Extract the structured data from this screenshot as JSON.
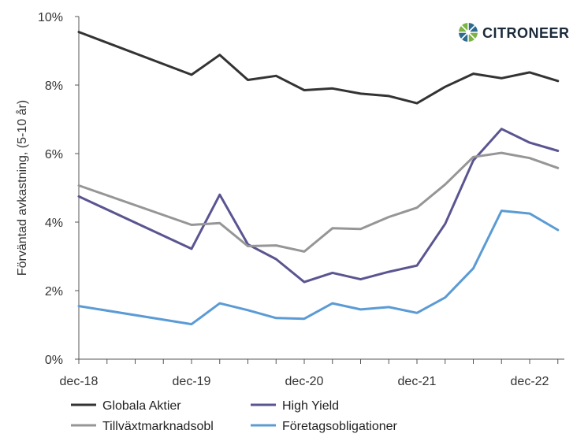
{
  "brand": {
    "name": "CITRONEER",
    "icon": "citroneer-logo-icon"
  },
  "chart_data": {
    "type": "line",
    "ylabel": "Förväntad avkastning, (5-10 år)",
    "xlabel": "",
    "ylim": [
      0,
      10
    ],
    "y_ticks": [
      0,
      2,
      4,
      6,
      8,
      10
    ],
    "y_tick_labels": [
      "0%",
      "2%",
      "4%",
      "6%",
      "8%",
      "10%"
    ],
    "x_tick_labels": [
      "dec-18",
      "dec-19",
      "dec-20",
      "dec-21",
      "dec-22"
    ],
    "grid": "none",
    "legend_position": "bottom",
    "series": [
      {
        "name": "Globala  Aktier",
        "color": "#333333",
        "points": [
          [
            "2018-12",
            9.55
          ],
          [
            "2019-12",
            8.3
          ],
          [
            "2020-03",
            8.88
          ],
          [
            "2020-06",
            8.15
          ],
          [
            "2020-09",
            8.27
          ],
          [
            "2020-12",
            7.85
          ],
          [
            "2021-03",
            7.9
          ],
          [
            "2021-06",
            7.75
          ],
          [
            "2021-09",
            7.68
          ],
          [
            "2021-12",
            7.47
          ],
          [
            "2022-03",
            7.95
          ],
          [
            "2022-06",
            8.33
          ],
          [
            "2022-09",
            8.2
          ],
          [
            "2022-12",
            8.37
          ],
          [
            "2023-03",
            8.12
          ]
        ]
      },
      {
        "name": "High Yield",
        "color": "#5a5590",
        "points": [
          [
            "2018-12",
            4.75
          ],
          [
            "2019-12",
            3.22
          ],
          [
            "2020-03",
            4.8
          ],
          [
            "2020-06",
            3.35
          ],
          [
            "2020-09",
            2.92
          ],
          [
            "2020-12",
            2.25
          ],
          [
            "2021-03",
            2.52
          ],
          [
            "2021-06",
            2.33
          ],
          [
            "2021-09",
            2.55
          ],
          [
            "2021-12",
            2.73
          ],
          [
            "2022-03",
            3.95
          ],
          [
            "2022-06",
            5.8
          ],
          [
            "2022-09",
            6.72
          ],
          [
            "2022-12",
            6.32
          ],
          [
            "2023-03",
            6.08
          ]
        ]
      },
      {
        "name": "Tillväxtmarknadsobl",
        "color": "#969696",
        "points": [
          [
            "2018-12",
            5.07
          ],
          [
            "2019-12",
            3.92
          ],
          [
            "2020-03",
            3.97
          ],
          [
            "2020-06",
            3.3
          ],
          [
            "2020-09",
            3.32
          ],
          [
            "2020-12",
            3.14
          ],
          [
            "2021-03",
            3.82
          ],
          [
            "2021-06",
            3.8
          ],
          [
            "2021-09",
            4.15
          ],
          [
            "2021-12",
            4.42
          ],
          [
            "2022-03",
            5.1
          ],
          [
            "2022-06",
            5.9
          ],
          [
            "2022-09",
            6.02
          ],
          [
            "2022-12",
            5.87
          ],
          [
            "2023-03",
            5.58
          ]
        ]
      },
      {
        "name": "Företagsobligationer",
        "color": "#5b9bd5",
        "points": [
          [
            "2018-12",
            1.55
          ],
          [
            "2019-12",
            1.02
          ],
          [
            "2020-03",
            1.63
          ],
          [
            "2020-06",
            1.43
          ],
          [
            "2020-09",
            1.2
          ],
          [
            "2020-12",
            1.18
          ],
          [
            "2021-03",
            1.63
          ],
          [
            "2021-06",
            1.45
          ],
          [
            "2021-09",
            1.52
          ],
          [
            "2021-12",
            1.35
          ],
          [
            "2022-03",
            1.8
          ],
          [
            "2022-06",
            2.65
          ],
          [
            "2022-09",
            4.33
          ],
          [
            "2022-12",
            4.25
          ],
          [
            "2023-03",
            3.77
          ]
        ]
      }
    ]
  }
}
